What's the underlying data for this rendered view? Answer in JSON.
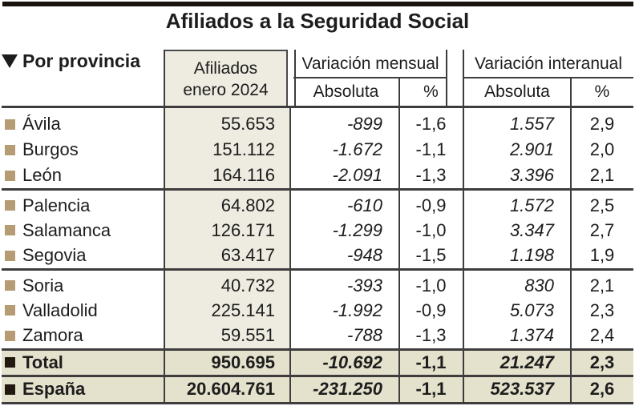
{
  "title": "Afiliados a la Seguridad Social",
  "header": {
    "province_label": "Por provincia",
    "sort_icon": "down-triangle",
    "affiliates_line1": "Afiliados",
    "affiliates_line2": "enero 2024",
    "monthly_variation": "Variación mensual",
    "yearly_variation": "Variación interanual",
    "absolute_label": "Absoluta",
    "percent_label": "%"
  },
  "chart_data": {
    "type": "table",
    "columns": [
      "Por provincia",
      "Afiliados enero 2024",
      "Variación mensual Absoluta",
      "Variación mensual %",
      "Variación interanual Absoluta",
      "Variación interanual %"
    ],
    "rows": [
      {
        "name": "Ávila",
        "afiliados": "55.653",
        "var_mensual_abs": "-899",
        "var_mensual_pct": "-1,6",
        "var_interanual_abs": "1.557",
        "var_interanual_pct": "2,9"
      },
      {
        "name": "Burgos",
        "afiliados": "151.112",
        "var_mensual_abs": "-1.672",
        "var_mensual_pct": "-1,1",
        "var_interanual_abs": "2.901",
        "var_interanual_pct": "2,0"
      },
      {
        "name": "León",
        "afiliados": "164.116",
        "var_mensual_abs": "-2.091",
        "var_mensual_pct": "-1,3",
        "var_interanual_abs": "3.396",
        "var_interanual_pct": "2,1"
      },
      {
        "name": "Palencia",
        "afiliados": "64.802",
        "var_mensual_abs": "-610",
        "var_mensual_pct": "-0,9",
        "var_interanual_abs": "1.572",
        "var_interanual_pct": "2,5"
      },
      {
        "name": "Salamanca",
        "afiliados": "126.171",
        "var_mensual_abs": "-1.299",
        "var_mensual_pct": "-1,0",
        "var_interanual_abs": "3.347",
        "var_interanual_pct": "2,7"
      },
      {
        "name": "Segovia",
        "afiliados": "63.417",
        "var_mensual_abs": "-948",
        "var_mensual_pct": "-1,5",
        "var_interanual_abs": "1.198",
        "var_interanual_pct": "1,9"
      },
      {
        "name": "Soria",
        "afiliados": "40.732",
        "var_mensual_abs": "-393",
        "var_mensual_pct": "-1,0",
        "var_interanual_abs": "830",
        "var_interanual_pct": "2,1"
      },
      {
        "name": "Valladolid",
        "afiliados": "225.141",
        "var_mensual_abs": "-1.992",
        "var_mensual_pct": "-0,9",
        "var_interanual_abs": "5.073",
        "var_interanual_pct": "2,3"
      },
      {
        "name": "Zamora",
        "afiliados": "59.551",
        "var_mensual_abs": "-788",
        "var_mensual_pct": "-1,3",
        "var_interanual_abs": "1.374",
        "var_interanual_pct": "2,4"
      }
    ],
    "summary_rows": [
      {
        "name": "Total",
        "afiliados": "950.695",
        "var_mensual_abs": "-10.692",
        "var_mensual_pct": "-1,1",
        "var_interanual_abs": "21.247",
        "var_interanual_pct": "2,3"
      },
      {
        "name": "España",
        "afiliados": "20.604.761",
        "var_mensual_abs": "-231.250",
        "var_mensual_pct": "-1,1",
        "var_interanual_abs": "523.537",
        "var_interanual_pct": "2,6"
      }
    ]
  },
  "colors": {
    "column_bg": "#eeebe0",
    "summary_bg": "#e4e1cc",
    "province_bullet": "#b59c74",
    "summary_bullet": "#221a10",
    "line": "#3d3d3d",
    "top_bar": "#19130d",
    "text": "#1d1d1d"
  }
}
